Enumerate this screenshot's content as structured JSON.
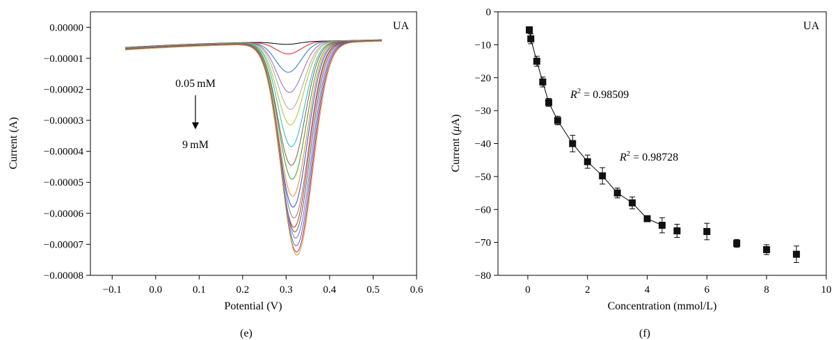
{
  "chart_data": [
    {
      "panel_label": "(e)",
      "type": "line",
      "inset_label": "UA",
      "xlabel": "Potential (V)",
      "ylabel": "Current (A)",
      "xlim": [
        -0.15,
        0.6
      ],
      "ylim": [
        -8e-05,
        5e-06
      ],
      "xticks": [
        -0.1,
        0.0,
        0.1,
        0.2,
        0.3,
        0.4,
        0.5,
        0.6
      ],
      "xtick_labels": [
        "−0.1",
        "0.0",
        "0.1",
        "0.2",
        "0.3",
        "0.4",
        "0.5",
        "0.6"
      ],
      "yticks": [
        0,
        -1e-05,
        -2e-05,
        -3e-05,
        -4e-05,
        -5e-05,
        -6e-05,
        -7e-05,
        -8e-05
      ],
      "ytick_labels": [
        "0.00000",
        "−0.00001",
        "−0.00002",
        "−0.00003",
        "−0.00004",
        "−0.00005",
        "−0.00006",
        "−0.00007",
        "−0.00008"
      ],
      "annotation_top": "0.05 mM",
      "annotation_bottom": "9 mM",
      "potential_range": [
        -0.07,
        0.52
      ],
      "series": [
        {
          "color": "#000000",
          "peak_potential": 0.3,
          "peak_current": -5.5e-06
        },
        {
          "color": "#e41a1c",
          "peak_potential": 0.305,
          "peak_current": -8.6e-06
        },
        {
          "color": "#1f77b4",
          "peak_potential": 0.305,
          "peak_current": -1.45e-05
        },
        {
          "color": "#9467bd",
          "peak_potential": 0.308,
          "peak_current": -2.1e-05
        },
        {
          "color": "#a6a6a6",
          "peak_potential": 0.31,
          "peak_current": -2.65e-05
        },
        {
          "color": "#bcbd22",
          "peak_potential": 0.31,
          "peak_current": -3.15e-05
        },
        {
          "color": "#17becf",
          "peak_potential": 0.312,
          "peak_current": -3.85e-05
        },
        {
          "color": "#8c564b",
          "peak_potential": 0.312,
          "peak_current": -4.45e-05
        },
        {
          "color": "#2ca02c",
          "peak_potential": 0.314,
          "peak_current": -4.9e-05
        },
        {
          "color": "#ff7f0e",
          "peak_potential": 0.315,
          "peak_current": -5.45e-05
        },
        {
          "color": "#1f4fd6",
          "peak_potential": 0.316,
          "peak_current": -5.8e-05
        },
        {
          "color": "#7f7f7f",
          "peak_potential": 0.318,
          "peak_current": -6.15e-05
        },
        {
          "color": "#d62728",
          "peak_potential": 0.318,
          "peak_current": -6.45e-05
        },
        {
          "color": "#556b2f",
          "peak_potential": 0.32,
          "peak_current": -6.6e-05
        },
        {
          "color": "#7b68ee",
          "peak_potential": 0.322,
          "peak_current": -6.8e-05
        },
        {
          "color": "#4a6fa5",
          "peak_potential": 0.323,
          "peak_current": -7.05e-05
        },
        {
          "color": "#c71585",
          "peak_potential": 0.324,
          "peak_current": -7.25e-05
        },
        {
          "color": "#daa520",
          "peak_potential": 0.325,
          "peak_current": -7.35e-05
        }
      ]
    },
    {
      "panel_label": "(f)",
      "type": "scatter",
      "inset_label": "UA",
      "xlabel": "Concentration (mmol/L)",
      "ylabel_prefix": "Current (",
      "ylabel_mu": "μ",
      "ylabel_suffix": "A)",
      "xlim": [
        -1,
        10
      ],
      "ylim": [
        -80,
        0
      ],
      "xticks": [
        0,
        2,
        4,
        6,
        8,
        10
      ],
      "xtick_labels": [
        "0",
        "2",
        "4",
        "6",
        "8",
        "10"
      ],
      "yticks": [
        0,
        -10,
        -20,
        -30,
        -40,
        -50,
        -60,
        -70,
        -80
      ],
      "ytick_labels": [
        "0",
        "−10",
        "−20",
        "−30",
        "−40",
        "−50",
        "−60",
        "−70",
        "−80"
      ],
      "r2_labels": [
        {
          "var": "R",
          "sup": "2",
          "value": " = 0.98509"
        },
        {
          "var": "R",
          "sup": "2",
          "value": " = 0.98728"
        }
      ],
      "points": [
        {
          "x": 0.05,
          "y": -5.5,
          "err": 1.0
        },
        {
          "x": 0.1,
          "y": -8.2,
          "err": 1.5
        },
        {
          "x": 0.3,
          "y": -15.0,
          "err": 1.5
        },
        {
          "x": 0.5,
          "y": -21.3,
          "err": 1.5
        },
        {
          "x": 0.7,
          "y": -27.5,
          "err": 1.2
        },
        {
          "x": 1.0,
          "y": -33.0,
          "err": 1.3
        },
        {
          "x": 1.5,
          "y": -40.0,
          "err": 2.5
        },
        {
          "x": 2.0,
          "y": -45.5,
          "err": 2.0
        },
        {
          "x": 2.5,
          "y": -49.8,
          "err": 2.5
        },
        {
          "x": 3.0,
          "y": -55.0,
          "err": 1.5
        },
        {
          "x": 3.5,
          "y": -58.0,
          "err": 1.8
        },
        {
          "x": 4.0,
          "y": -62.8,
          "err": 0.8
        },
        {
          "x": 4.5,
          "y": -64.8,
          "err": 2.3
        },
        {
          "x": 5.0,
          "y": -66.5,
          "err": 2.0
        },
        {
          "x": 6.0,
          "y": -66.7,
          "err": 2.5
        },
        {
          "x": 7.0,
          "y": -70.3,
          "err": 1.2
        },
        {
          "x": 8.0,
          "y": -72.2,
          "err": 1.5
        },
        {
          "x": 9.0,
          "y": -73.6,
          "err": 2.5
        }
      ],
      "fit_lines": [
        {
          "x_range": [
            0.05,
            1.0
          ]
        },
        {
          "x_range": [
            1.0,
            4.5
          ]
        }
      ]
    }
  ]
}
